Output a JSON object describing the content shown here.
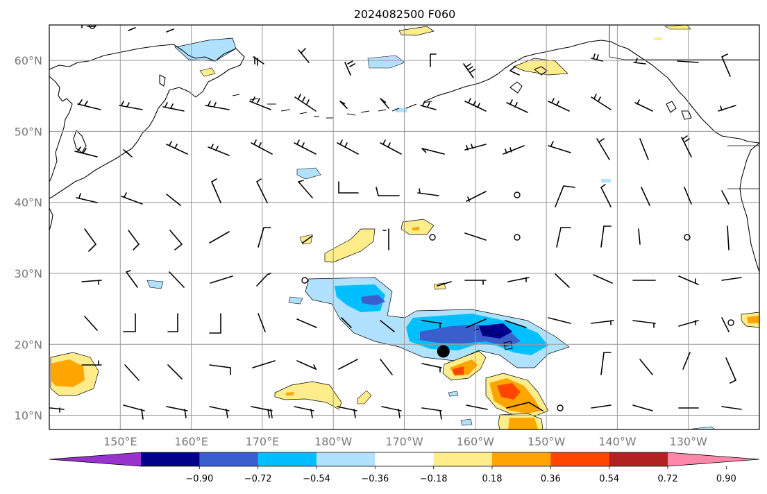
{
  "title": "2024082500 F060",
  "map": {
    "lon_range": [
      140,
      240
    ],
    "lat_range": [
      8,
      65
    ],
    "grid": true,
    "grid_lons": [
      150,
      160,
      170,
      180,
      190,
      200,
      210,
      220,
      230
    ],
    "grid_lats": [
      10,
      20,
      30,
      40,
      50,
      60
    ],
    "lat_labels": [
      "10°N",
      "20°N",
      "30°N",
      "40°N",
      "50°N",
      "60°N"
    ],
    "lon_labels": [
      "150°E",
      "160°E",
      "170°E",
      "180°W",
      "170°W",
      "160°W",
      "150°W",
      "140°W",
      "130°W"
    ],
    "storm_marker": {
      "lon": 195.5,
      "lat": 19
    }
  },
  "colorbar": {
    "ticks": [
      "-0.90",
      "-0.72",
      "-0.54",
      "-0.36",
      "-0.18",
      "0.18",
      "0.36",
      "0.54",
      "0.72",
      "0.90"
    ],
    "colors": [
      "#9932cc",
      "#00008b",
      "#3a5fcd",
      "#00bfff",
      "#b0e2ff",
      "#ffffff",
      "#ffec8b",
      "#ffa500",
      "#ff4500",
      "#b22222",
      "#ff88aa"
    ]
  },
  "colors": {
    "land_outline": "#000000",
    "grid": "#999999",
    "barbs": "#000000"
  }
}
